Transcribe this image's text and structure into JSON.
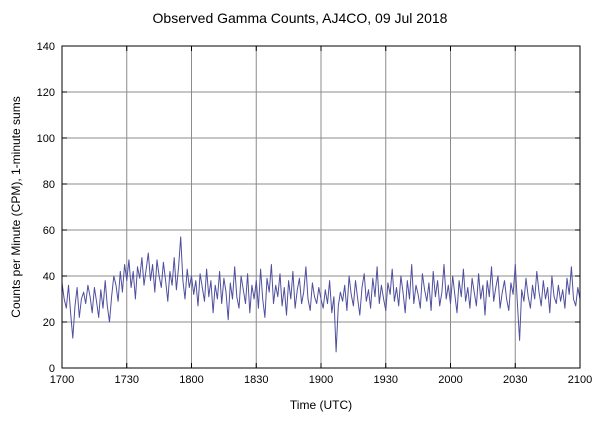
{
  "chart_data": {
    "type": "line",
    "title": "Observed Gamma Counts, AJ4CO, 09 Jul 2018",
    "xlabel": "Time (UTC)",
    "ylabel": "Counts per Minute (CPM), 1-minute sums",
    "xlim": [
      0,
      240
    ],
    "ylim": [
      0,
      140
    ],
    "x_tick_minutes": [
      0,
      30,
      60,
      90,
      120,
      150,
      180,
      210,
      240
    ],
    "x_tick_labels": [
      "1700",
      "1730",
      "1800",
      "1830",
      "1900",
      "1930",
      "2000",
      "2030",
      "2100"
    ],
    "y_ticks": [
      0,
      20,
      40,
      60,
      80,
      100,
      120,
      140
    ],
    "grid": true,
    "legend": "none",
    "line_color": "#4f4f9f",
    "grid_color": "#8c8c8c",
    "axis_color": "#000000",
    "series": [
      {
        "name": "gamma-counts-1min-sums",
        "x_start_minute": 0,
        "step_minutes": 1,
        "values": [
          37,
          30,
          26,
          36,
          24,
          13,
          27,
          35,
          22,
          30,
          33,
          28,
          36,
          31,
          24,
          35,
          29,
          22,
          34,
          26,
          38,
          27,
          20,
          31,
          40,
          36,
          29,
          42,
          33,
          45,
          38,
          47,
          35,
          42,
          30,
          44,
          39,
          48,
          36,
          43,
          50,
          38,
          45,
          33,
          47,
          40,
          35,
          46,
          38,
          29,
          42,
          36,
          48,
          34,
          44,
          57,
          38,
          30,
          43,
          35,
          40,
          32,
          38,
          27,
          41,
          35,
          29,
          43,
          31,
          38,
          24,
          36,
          30,
          42,
          28,
          39,
          33,
          21,
          37,
          30,
          44,
          31,
          26,
          40,
          34,
          28,
          41,
          24,
          36,
          30,
          38,
          26,
          43,
          30,
          22,
          39,
          33,
          45,
          28,
          36,
          31,
          41,
          27,
          35,
          23,
          38,
          30,
          42,
          26,
          34,
          39,
          28,
          33,
          44,
          30,
          25,
          37,
          31,
          28,
          35,
          30,
          26,
          34,
          28,
          38,
          24,
          31,
          7,
          27,
          33,
          29,
          36,
          25,
          40,
          32,
          27,
          38,
          30,
          23,
          35,
          41,
          29,
          34,
          26,
          39,
          31,
          44,
          28,
          36,
          30,
          25,
          37,
          32,
          43,
          29,
          35,
          27,
          40,
          33,
          24,
          38,
          30,
          45,
          28,
          36,
          32,
          26,
          41,
          34,
          29,
          37,
          25,
          42,
          31,
          38,
          27,
          33,
          45,
          30,
          36,
          28,
          40,
          32,
          24,
          38,
          31,
          43,
          29,
          35,
          26,
          39,
          33,
          27,
          41,
          30,
          36,
          23,
          38,
          31,
          44,
          29,
          35,
          40,
          26,
          33,
          38,
          30,
          25,
          37,
          32,
          45,
          28,
          12,
          34,
          29,
          39,
          31,
          26,
          36,
          30,
          42,
          33,
          27,
          38,
          30,
          35,
          24,
          40,
          31,
          28,
          36,
          29,
          34,
          26,
          39,
          32,
          44,
          30,
          27,
          35,
          30
        ]
      }
    ]
  }
}
